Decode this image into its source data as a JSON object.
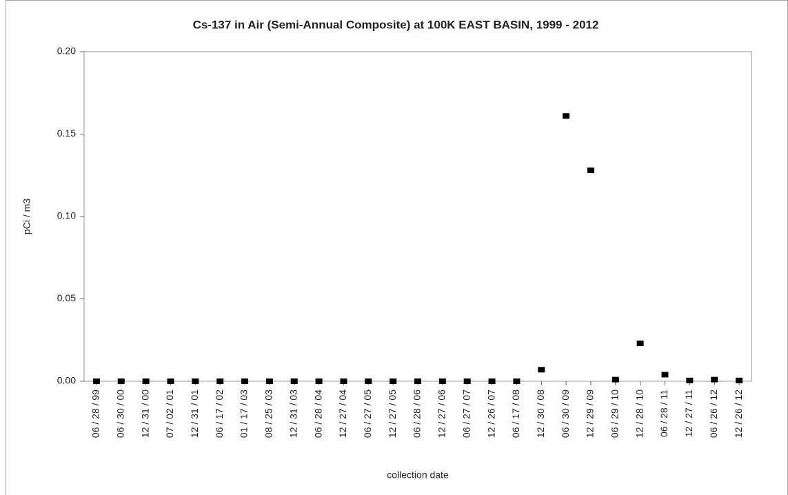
{
  "chart_data": {
    "type": "scatter",
    "title": "Cs-137 in Air (Semi-Annual Composite) at 100K EAST BASIN, 1999 - 2012",
    "x_label": "collection date",
    "y_label": "pCi / m3",
    "categories": [
      "06 / 28 / 99",
      "06 / 30 / 00",
      "12 / 31 / 00",
      "07 / 02 / 01",
      "12 / 31 / 01",
      "06 / 17 / 02",
      "01 / 17 / 03",
      "08 / 25 / 03",
      "12 / 31 / 03",
      "06 / 28 / 04",
      "12 / 27 / 04",
      "06 / 27 / 05",
      "12 / 27 / 05",
      "06 / 28 / 06",
      "12 / 27 / 06",
      "06 / 27 / 07",
      "12 / 26 / 07",
      "06 / 17 / 08",
      "12 / 30 / 08",
      "06 / 30 / 09",
      "12 / 29 / 09",
      "06 / 29 / 10",
      "12 / 28 / 10",
      "06 / 28 / 11",
      "12 / 27 / 11",
      "06 / 26 / 12",
      "12 / 26 / 12"
    ],
    "values": [
      0,
      0,
      0,
      0,
      0,
      0,
      0,
      0,
      0,
      0,
      0,
      0,
      0,
      0,
      0,
      0,
      0,
      0,
      0.007,
      0.161,
      0.128,
      0.001,
      0.023,
      0.004,
      0.0005,
      0.001,
      0.0005
    ],
    "color": "#000000",
    "ylim": [
      0,
      0.2
    ],
    "yticks": [
      {
        "value": 0,
        "label": "0.00"
      },
      0.05,
      {
        "value": 0.1,
        "label": "0.10"
      },
      0.15,
      {
        "value": 0.2,
        "label": "0.20"
      }
    ],
    "grid": false
  }
}
